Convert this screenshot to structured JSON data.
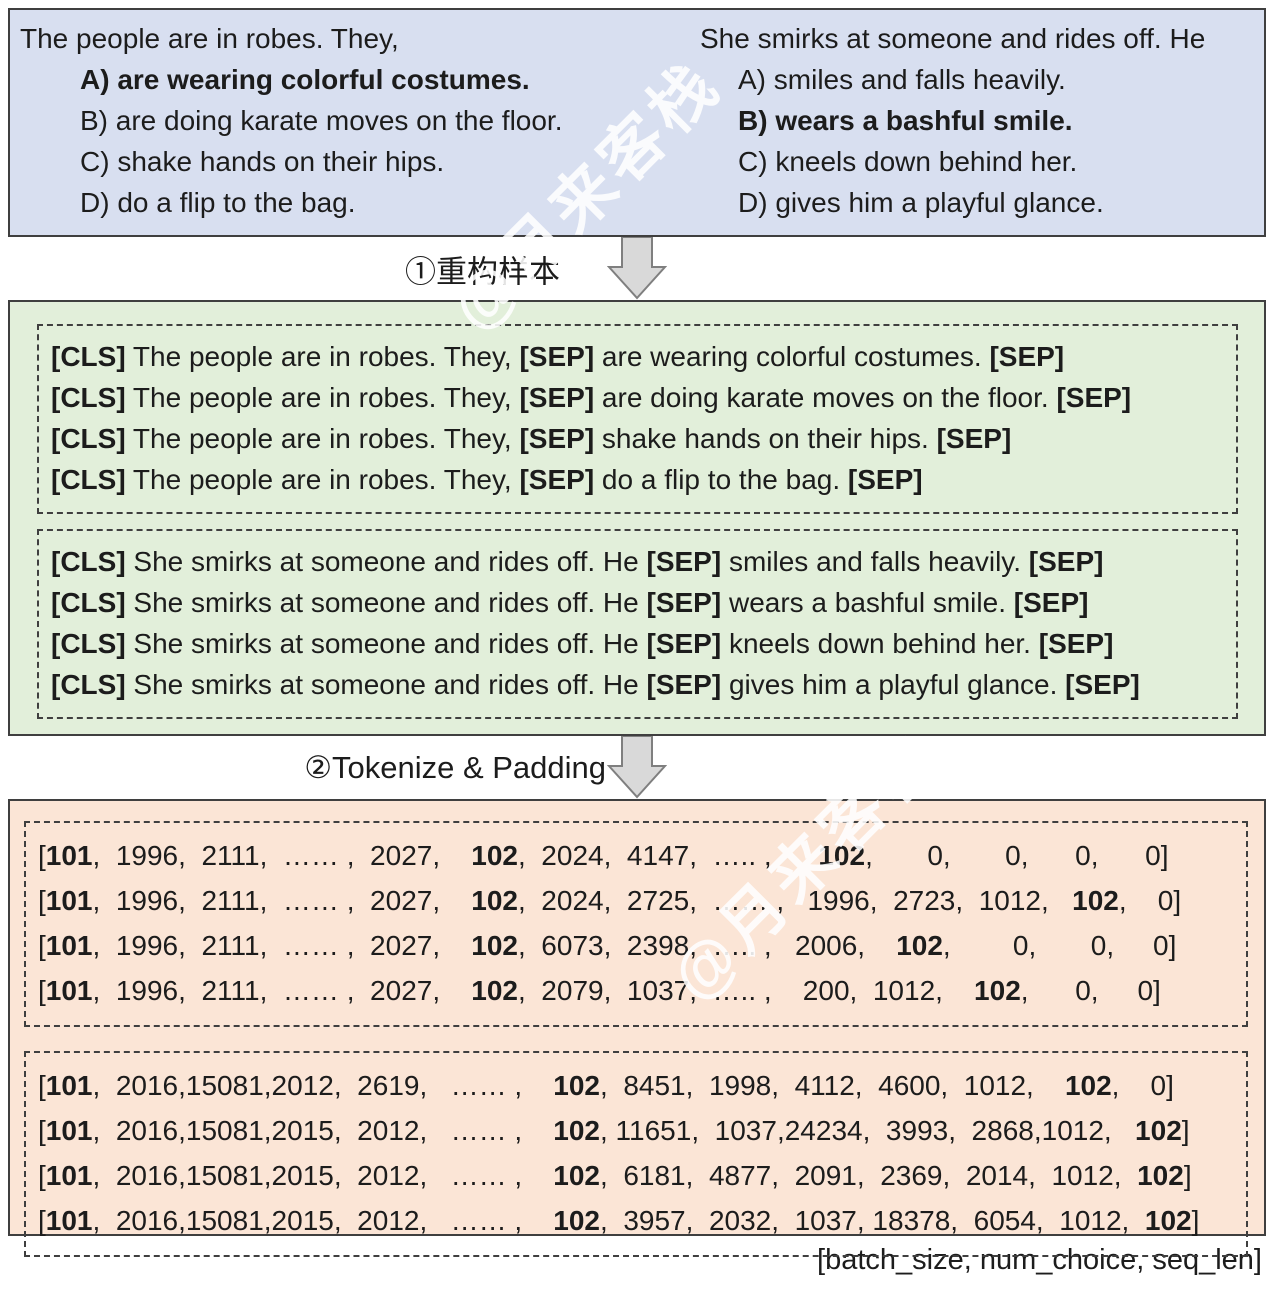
{
  "colors": {
    "question_bg": "#d8dff0",
    "reconstructed_bg": "#e2efda",
    "tokens_bg": "#fbe5d6",
    "arrow_fill": "#d9d9d9",
    "arrow_stroke": "#7f7f7f"
  },
  "watermark": {
    "text": "@月来客栈"
  },
  "question_box": {
    "columns": [
      {
        "prompt": "The people are in robes. They,",
        "options": [
          {
            "label": "A)",
            "text": "are wearing colorful costumes.",
            "bold": true
          },
          {
            "label": "B)",
            "text": "are doing karate moves on the floor.",
            "bold": false
          },
          {
            "label": "C)",
            "text": "shake hands on their hips.",
            "bold": false
          },
          {
            "label": "D)",
            "text": "do a flip to the bag.",
            "bold": false
          }
        ]
      },
      {
        "prompt": "She smirks at someone and rides off. He",
        "options": [
          {
            "label": "A)",
            "text": "smiles and falls heavily.",
            "bold": false
          },
          {
            "label": "B)",
            "text": "wears a bashful smile.",
            "bold": true
          },
          {
            "label": "C)",
            "text": "kneels down behind her.",
            "bold": false
          },
          {
            "label": "D)",
            "text": "gives him a playful glance.",
            "bold": false
          }
        ]
      }
    ]
  },
  "step1_label": "①重构样本",
  "step2_label": "②Tokenize & Padding",
  "reconstructed_box": {
    "groups": [
      {
        "lines": [
          "[CLS] The people are in robes. They, [SEP] are wearing colorful costumes. [SEP]",
          "[CLS] The people are in robes. They, [SEP] are doing karate moves on the floor.  [SEP]",
          "[CLS] The people are in robes. They, [SEP] shake hands on their hips. [SEP]",
          "[CLS] The people are in robes. They, [SEP] do a flip to the bag. [SEP]"
        ]
      },
      {
        "lines": [
          "[CLS] She smirks at someone and rides off. He [SEP] smiles and falls heavily.  [SEP]",
          "[CLS] She smirks at someone and rides off. He [SEP] wears a bashful smile.  [SEP]",
          "[CLS] She smirks at someone and rides off. He [SEP] kneels down behind her.  [SEP]",
          "[CLS] She smirks at someone and rides off. He [SEP] gives him a playful glance. [SEP]"
        ]
      }
    ]
  },
  "token_box": {
    "groups": [
      {
        "rows": [
          "[101,  1996,  2111,  …… ,  2027,    102,  2024,  4147,  ….. ,      102,       0,       0,      0,      0]",
          "[101,  1996,  2111,  …… ,  2027,    102,  2024,  2725,  …… ,   1996,  2723,  1012,   102,    0]",
          "[101,  1996,  2111,  …… ,  2027,    102,  6073,  2398,  ….. ,   2006,    102,        0,       0,     0]",
          "[101,  1996,  2111,  …… ,  2027,    102,  2079,  1037,  ….. ,    200,  1012,    102,      0,     0]"
        ]
      },
      {
        "rows": [
          "[101,  2016,15081,2012,  2619,   …… ,    102,  8451,  1998,  4112,  4600,  1012,    102,    0]",
          "[101,  2016,15081,2015,  2012,   …… ,    102, 11651,  1037,24234,  3993,  2868,1012,   102]",
          "[101,  2016,15081,2015,  2012,   …… ,    102,  6181,  4877,  2091,  2369,  2014,  1012,  102]",
          "[101,  2016,15081,2015,  2012,   …… ,    102,  3957,  2032,  1037, 18378,  6054,  1012,  102]"
        ]
      }
    ]
  },
  "shape_label": "[batch_size, num_choice, seq_len]"
}
